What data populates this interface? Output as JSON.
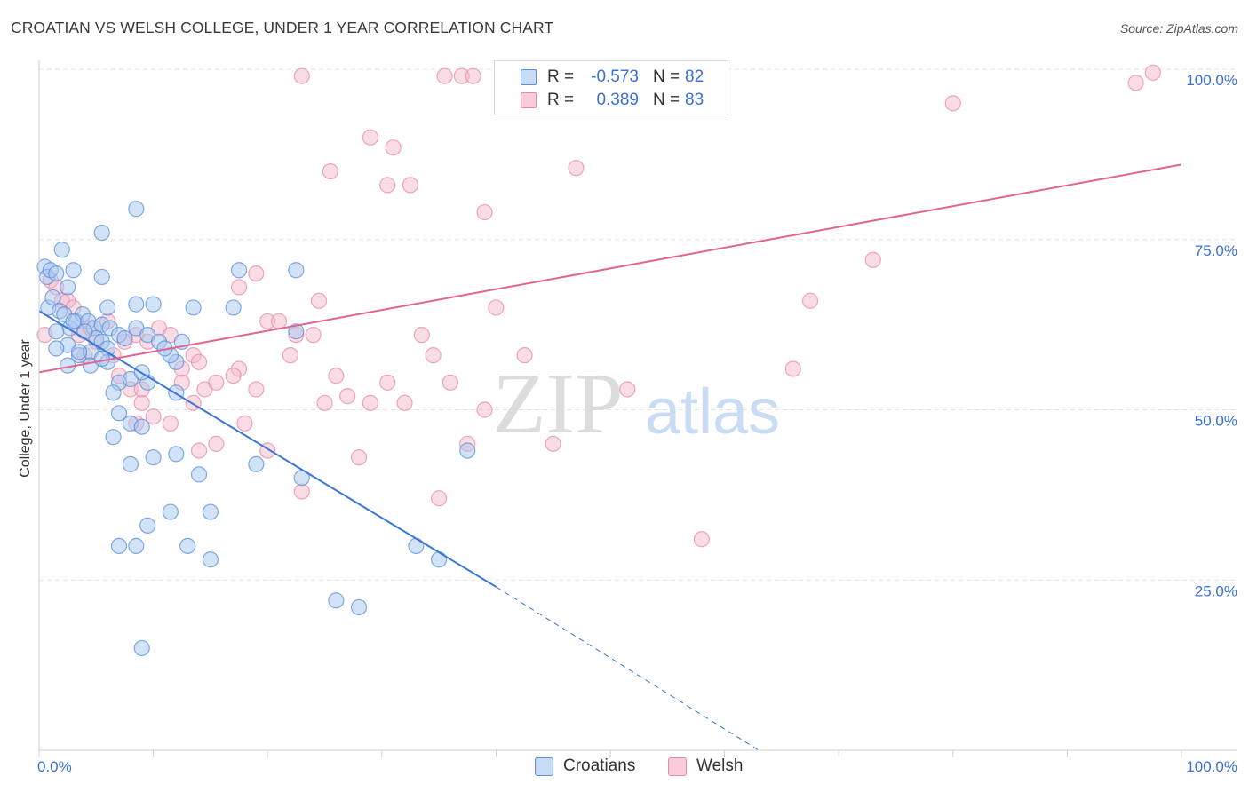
{
  "title": "CROATIAN VS WELSH COLLEGE, UNDER 1 YEAR CORRELATION CHART",
  "source": "Source: ZipAtlas.com",
  "legend": {
    "rows": [
      {
        "r_label": "R =",
        "r_value": "-0.573",
        "n_label": "N =",
        "n_value": "82"
      },
      {
        "r_label": "R =",
        "r_value": "0.389",
        "n_label": "N =",
        "n_value": "83"
      }
    ]
  },
  "bottom_legend": {
    "croatians": "Croatians",
    "welsh": "Welsh"
  },
  "watermark": {
    "zip": "ZIP",
    "atlas": "atlas"
  },
  "colors": {
    "croatians_fill": "#a8c8f0",
    "croatians_stroke": "#5b8fd9",
    "croatians_line": "#3a78d4",
    "welsh_fill": "#f6b9cc",
    "welsh_stroke": "#e889a8",
    "welsh_line": "#e0648f",
    "grid": "#e3e3e3",
    "tick_label": "#3b6fd4"
  },
  "chart_data": {
    "type": "scatter",
    "title": "CROATIAN VS WELSH COLLEGE, UNDER 1 YEAR CORRELATION CHART",
    "xlabel": "",
    "ylabel": "College, Under 1 year",
    "xlim": [
      0,
      100
    ],
    "ylim": [
      0,
      100
    ],
    "x_tick_labels": [
      "0.0%",
      "100.0%"
    ],
    "y_tick_labels": [
      {
        "value": 25,
        "label": "25.0%"
      },
      {
        "value": 50,
        "label": "50.0%"
      },
      {
        "value": 75,
        "label": "75.0%"
      },
      {
        "value": 100,
        "label": "100.0%"
      }
    ],
    "series": [
      {
        "name": "Croatians",
        "r": -0.573,
        "n": 82,
        "trend": {
          "x0": 0,
          "y0": 64.5,
          "x1": 40,
          "y1": 24,
          "dash_to_x": 63,
          "dash_to_y": 0
        },
        "points": [
          [
            0.5,
            71
          ],
          [
            0.7,
            69.5
          ],
          [
            1,
            70.5
          ],
          [
            1.5,
            70
          ],
          [
            2,
            73.5
          ],
          [
            2.5,
            68
          ],
          [
            3,
            70.5
          ],
          [
            0.8,
            65
          ],
          [
            1.2,
            66.5
          ],
          [
            1.8,
            64.5
          ],
          [
            2.2,
            64
          ],
          [
            2.7,
            62
          ],
          [
            3.2,
            63
          ],
          [
            3.8,
            64
          ],
          [
            4.3,
            63
          ],
          [
            4.8,
            62
          ],
          [
            5.5,
            62.5
          ],
          [
            1.5,
            61.5
          ],
          [
            2.5,
            59.5
          ],
          [
            3.5,
            58
          ],
          [
            4.5,
            58.5
          ],
          [
            5,
            60.5
          ],
          [
            5.5,
            60
          ],
          [
            6,
            59
          ],
          [
            6.2,
            62
          ],
          [
            7,
            61
          ],
          [
            7.5,
            60.5
          ],
          [
            8.5,
            62
          ],
          [
            9.5,
            61
          ],
          [
            10.5,
            60
          ],
          [
            12.5,
            60
          ],
          [
            12,
            57
          ],
          [
            11.5,
            58
          ],
          [
            4.5,
            56.5
          ],
          [
            6,
            57
          ],
          [
            7,
            54
          ],
          [
            8,
            54.5
          ],
          [
            9.5,
            54
          ],
          [
            11,
            59
          ],
          [
            12,
            52.5
          ],
          [
            6.5,
            52.5
          ],
          [
            7,
            49.5
          ],
          [
            8,
            48
          ],
          [
            9,
            47.5
          ],
          [
            6.5,
            46
          ],
          [
            10,
            43
          ],
          [
            12,
            43.5
          ],
          [
            14,
            40.5
          ],
          [
            8,
            42
          ],
          [
            19,
            42
          ],
          [
            23,
            40
          ],
          [
            9.5,
            33
          ],
          [
            11.5,
            35
          ],
          [
            15,
            35
          ],
          [
            7,
            30
          ],
          [
            8.5,
            30
          ],
          [
            13,
            30
          ],
          [
            15,
            28
          ],
          [
            9,
            15
          ],
          [
            26,
            22
          ],
          [
            28,
            21
          ],
          [
            33,
            30
          ],
          [
            35,
            28
          ],
          [
            37.5,
            44
          ],
          [
            5.5,
            69.5
          ],
          [
            6,
            65
          ],
          [
            8.5,
            79.5
          ],
          [
            5.5,
            76
          ],
          [
            17.5,
            70.5
          ],
          [
            22.5,
            70.5
          ],
          [
            8.5,
            65.5
          ],
          [
            10,
            65.5
          ],
          [
            13.5,
            65
          ],
          [
            17,
            65
          ],
          [
            22.5,
            61.5
          ],
          [
            3,
            63
          ],
          [
            4,
            61.5
          ],
          [
            5.5,
            57.5
          ],
          [
            1.5,
            59
          ],
          [
            9,
            55.5
          ],
          [
            2.5,
            56.5
          ],
          [
            3.5,
            58.5
          ]
        ]
      },
      {
        "name": "Welsh",
        "r": 0.389,
        "n": 83,
        "trend": {
          "x0": 0,
          "y0": 55.5,
          "x1": 100,
          "y1": 86
        },
        "points": [
          [
            0.5,
            61
          ],
          [
            1,
            69
          ],
          [
            1.5,
            68
          ],
          [
            2,
            66
          ],
          [
            2.5,
            66
          ],
          [
            3,
            65
          ],
          [
            3.5,
            61
          ],
          [
            4,
            58
          ],
          [
            4.5,
            62
          ],
          [
            5,
            60
          ],
          [
            6,
            63
          ],
          [
            6.5,
            58
          ],
          [
            7.5,
            60
          ],
          [
            8.5,
            61
          ],
          [
            9.5,
            60
          ],
          [
            10.5,
            62
          ],
          [
            11.5,
            61
          ],
          [
            12.5,
            56
          ],
          [
            13.5,
            58
          ],
          [
            14,
            57
          ],
          [
            7,
            55
          ],
          [
            8,
            53
          ],
          [
            9,
            51
          ],
          [
            10,
            49
          ],
          [
            11.5,
            48
          ],
          [
            12.5,
            54
          ],
          [
            13.5,
            51
          ],
          [
            14.5,
            53
          ],
          [
            15.5,
            45
          ],
          [
            14,
            44
          ],
          [
            17.5,
            68
          ],
          [
            19,
            70
          ],
          [
            17.5,
            56
          ],
          [
            19,
            53
          ],
          [
            20,
            63
          ],
          [
            21,
            63
          ],
          [
            22,
            58
          ],
          [
            22.5,
            61
          ],
          [
            24,
            61
          ],
          [
            24.5,
            66
          ],
          [
            26,
            55
          ],
          [
            27,
            52
          ],
          [
            29,
            51
          ],
          [
            30.5,
            54
          ],
          [
            32,
            51
          ],
          [
            33.5,
            61
          ],
          [
            34.5,
            58
          ],
          [
            36,
            54
          ],
          [
            37.5,
            45
          ],
          [
            28,
            43
          ],
          [
            20,
            44
          ],
          [
            23,
            38
          ],
          [
            17,
            55
          ],
          [
            15.5,
            54
          ],
          [
            18,
            48
          ],
          [
            25,
            51
          ],
          [
            39,
            50
          ],
          [
            40,
            65
          ],
          [
            42.5,
            58
          ],
          [
            45,
            45
          ],
          [
            51.5,
            53
          ],
          [
            58,
            31
          ],
          [
            66,
            56
          ],
          [
            67.5,
            66
          ],
          [
            73,
            72
          ],
          [
            80,
            95
          ],
          [
            35,
            37
          ],
          [
            9,
            53
          ],
          [
            8.5,
            48
          ],
          [
            23,
            99
          ],
          [
            25.5,
            85
          ],
          [
            29,
            90
          ],
          [
            30.5,
            83
          ],
          [
            31,
            88.5
          ],
          [
            32.5,
            83
          ],
          [
            35.5,
            99
          ],
          [
            37,
            99
          ],
          [
            38,
            99
          ],
          [
            39,
            79
          ],
          [
            42,
            99.5
          ],
          [
            47,
            85.5
          ],
          [
            96,
            98
          ],
          [
            97.5,
            99.5
          ]
        ]
      }
    ]
  }
}
